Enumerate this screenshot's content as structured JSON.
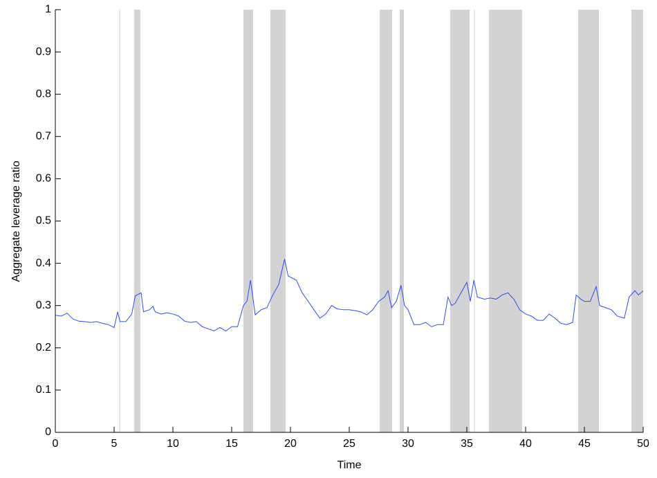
{
  "chart_data": {
    "type": "line",
    "x_label": "Time",
    "y_label": "Aggregate leverage ratio",
    "xlim": [
      0,
      50
    ],
    "ylim": [
      0,
      1
    ],
    "xticks": [
      0,
      5,
      10,
      15,
      20,
      25,
      30,
      35,
      40,
      45,
      50
    ],
    "yticks": [
      0,
      0.1,
      0.2,
      0.3,
      0.4,
      0.5,
      0.6,
      0.7,
      0.8,
      0.9,
      1
    ],
    "shaded_regions": [
      [
        5.45,
        5.5
      ],
      [
        6.7,
        7.24
      ],
      [
        16.0,
        16.82
      ],
      [
        18.29,
        19.59
      ],
      [
        27.59,
        28.65
      ],
      [
        29.29,
        29.65
      ],
      [
        33.59,
        35.24
      ],
      [
        35.62,
        35.67
      ],
      [
        36.88,
        39.71
      ],
      [
        44.47,
        46.24
      ],
      [
        49.0,
        50
      ]
    ],
    "shade_color": "#d3d3d3",
    "x": [
      0,
      0.5,
      1,
      1.5,
      2,
      2.5,
      3,
      3.5,
      4,
      4.5,
      5,
      5.3,
      5.5,
      6,
      6.5,
      6.8,
      7.3,
      7.5,
      8,
      8.3,
      8.5,
      9,
      9.5,
      10,
      10.5,
      11,
      11.5,
      12,
      12.5,
      13,
      13.5,
      14,
      14.5,
      15,
      15.5,
      16,
      16.3,
      16.6,
      17,
      17.5,
      18,
      18.5,
      19,
      19.5,
      19.8,
      20.5,
      21,
      21.5,
      22,
      22.5,
      23,
      23.5,
      24,
      24.5,
      25,
      25.5,
      26,
      26.5,
      27,
      27.5,
      28,
      28.3,
      28.6,
      29,
      29.4,
      29.7,
      30,
      30.5,
      31,
      31.5,
      32,
      32.5,
      33,
      33.4,
      33.7,
      34,
      34.5,
      35,
      35.3,
      35.6,
      35.9,
      36.5,
      37,
      37.5,
      38,
      38.5,
      39,
      39.5,
      40,
      40.5,
      41,
      41.5,
      42,
      42.5,
      43,
      43.5,
      44,
      44.3,
      44.7,
      45,
      45.5,
      46,
      46.3,
      46.8,
      47.3,
      47.8,
      48.4,
      48.8,
      49.3,
      49.6,
      50
    ],
    "series": [
      {
        "color": "#2a4bff",
        "values": [
          0.277,
          0.275,
          0.282,
          0.268,
          0.263,
          0.262,
          0.26,
          0.262,
          0.258,
          0.255,
          0.248,
          0.285,
          0.262,
          0.262,
          0.28,
          0.323,
          0.33,
          0.285,
          0.29,
          0.298,
          0.285,
          0.28,
          0.283,
          0.28,
          0.275,
          0.263,
          0.26,
          0.262,
          0.25,
          0.245,
          0.24,
          0.248,
          0.24,
          0.25,
          0.25,
          0.3,
          0.31,
          0.36,
          0.278,
          0.29,
          0.295,
          0.325,
          0.35,
          0.41,
          0.37,
          0.36,
          0.33,
          0.31,
          0.29,
          0.27,
          0.28,
          0.3,
          0.292,
          0.29,
          0.29,
          0.288,
          0.285,
          0.278,
          0.29,
          0.31,
          0.32,
          0.335,
          0.295,
          0.31,
          0.348,
          0.3,
          0.29,
          0.255,
          0.255,
          0.26,
          0.25,
          0.255,
          0.255,
          0.32,
          0.3,
          0.305,
          0.33,
          0.355,
          0.31,
          0.36,
          0.32,
          0.315,
          0.318,
          0.315,
          0.325,
          0.33,
          0.315,
          0.29,
          0.28,
          0.275,
          0.265,
          0.265,
          0.28,
          0.27,
          0.258,
          0.255,
          0.26,
          0.325,
          0.315,
          0.31,
          0.31,
          0.345,
          0.3,
          0.295,
          0.29,
          0.275,
          0.27,
          0.32,
          0.335,
          0.325,
          0.335
        ]
      }
    ]
  }
}
